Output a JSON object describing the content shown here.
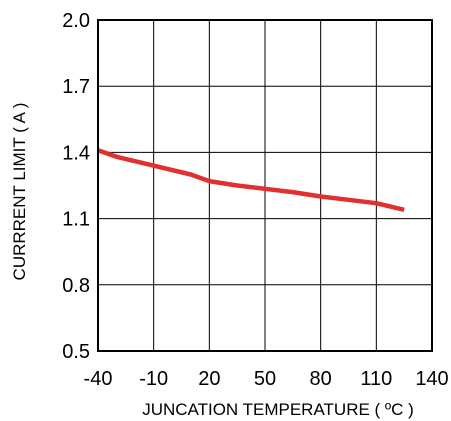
{
  "chart_data": {
    "type": "line",
    "title": "",
    "xlabel": "JUNCATION TEMPERATURE ( ºC )",
    "ylabel": "CURRRENT LIMIT ( A )",
    "xlim": [
      -40,
      140
    ],
    "ylim": [
      0.5,
      2.0
    ],
    "x_ticks": [
      -40,
      -10,
      20,
      50,
      80,
      110,
      140
    ],
    "x_tick_labels": [
      "-40",
      "-10",
      "20",
      "50",
      "80",
      "110",
      "140"
    ],
    "y_ticks": [
      0.5,
      0.8,
      1.1,
      1.4,
      1.7,
      2.0
    ],
    "y_tick_labels": [
      "0.5",
      "0.8",
      "1.1",
      "1.4",
      "1.7",
      "2.0"
    ],
    "grid": true,
    "legend": "none",
    "series": [
      {
        "color": "#e03030",
        "x": [
          -40,
          -30,
          -15,
          0,
          10,
          20,
          35,
          50,
          65,
          80,
          95,
          110,
          125
        ],
        "y": [
          1.41,
          1.38,
          1.35,
          1.32,
          1.3,
          1.27,
          1.25,
          1.235,
          1.22,
          1.2,
          1.185,
          1.17,
          1.14
        ]
      }
    ]
  }
}
